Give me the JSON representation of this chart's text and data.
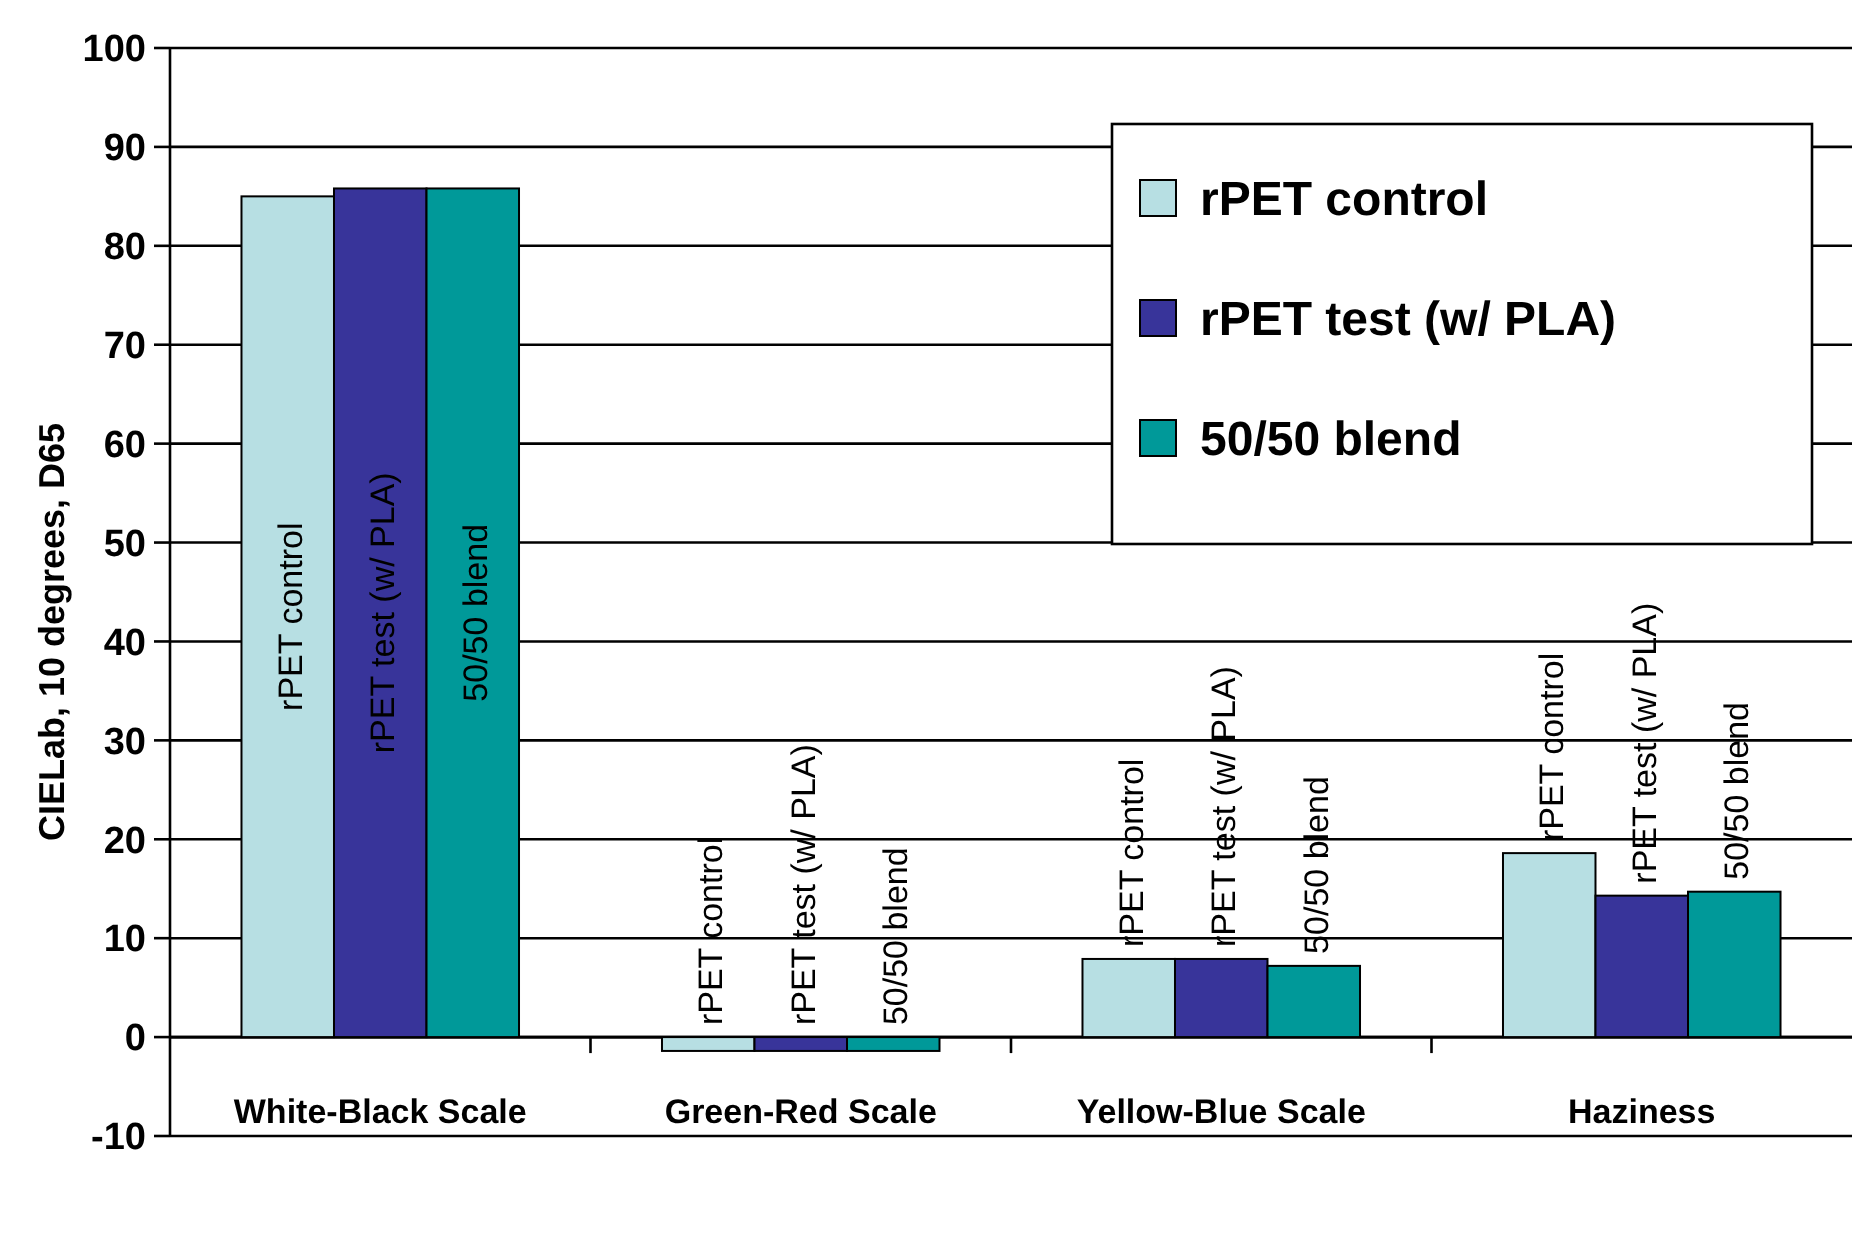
{
  "chart_data": {
    "type": "bar",
    "ylabel": "CIELab, 10 degrees, D65",
    "categories": [
      "White-Black Scale",
      "Green-Red Scale",
      "Yellow-Blue Scale",
      "Haziness"
    ],
    "series": [
      {
        "name": "rPET control",
        "color": "#b7dfe3",
        "values": [
          85,
          -1.4,
          7.9,
          18.6
        ]
      },
      {
        "name": "rPET test (w/ PLA)",
        "color": "#38349a",
        "values": [
          85.8,
          -1.4,
          7.9,
          14.3
        ]
      },
      {
        "name": "50/50 blend",
        "color": "#009999",
        "values": [
          85.8,
          -1.4,
          7.2,
          14.7
        ]
      }
    ],
    "ylim": [
      -10,
      100
    ],
    "yticks": [
      -10,
      0,
      10,
      20,
      30,
      40,
      50,
      60,
      70,
      80,
      90,
      100
    ],
    "grid": "y",
    "legend": "top right",
    "annotations": [
      "rPET control",
      "rPET test (w/ PLA)",
      "50/50 blend",
      "rPET control",
      "rPET test (w/ PLA)",
      "50/50 blend",
      "rPET control",
      "rPET test (w/ PLA)",
      "50/50 blend",
      "rPET control",
      "rPET test (w/ PLA)",
      "50/50 blend"
    ]
  }
}
